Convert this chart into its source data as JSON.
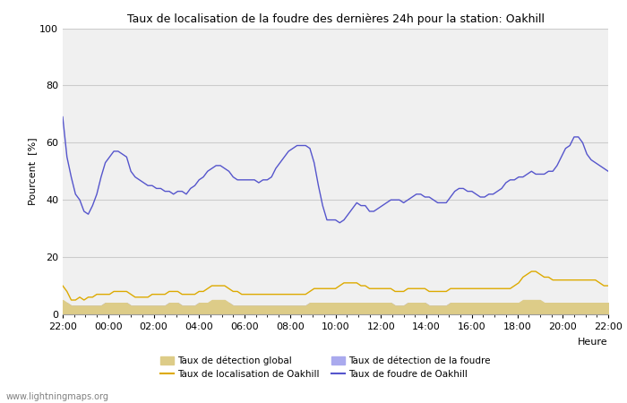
{
  "title": "Taux de localisation de la foudre des dernières 24h pour la station: Oakhill",
  "xlabel": "Heure",
  "ylabel": "Pourcent  [%]",
  "xlim": [
    0,
    24
  ],
  "ylim": [
    0,
    100
  ],
  "yticks": [
    0,
    20,
    40,
    60,
    80,
    100
  ],
  "xtick_labels": [
    "22:00",
    "00:00",
    "02:00",
    "04:00",
    "06:00",
    "08:00",
    "10:00",
    "12:00",
    "14:00",
    "16:00",
    "18:00",
    "20:00",
    "22:00"
  ],
  "xtick_positions": [
    0,
    2,
    4,
    6,
    8,
    10,
    12,
    14,
    16,
    18,
    20,
    22,
    24
  ],
  "background_color": "#ffffff",
  "plot_bg_color": "#f0f0f0",
  "grid_color": "#cccccc",
  "watermark": "www.lightningmaps.org",
  "blue_line": [
    69,
    55,
    48,
    42,
    40,
    36,
    35,
    38,
    42,
    48,
    53,
    55,
    57,
    57,
    56,
    55,
    50,
    48,
    47,
    46,
    45,
    45,
    44,
    44,
    43,
    43,
    42,
    43,
    43,
    42,
    44,
    45,
    47,
    48,
    50,
    51,
    52,
    52,
    51,
    50,
    48,
    47,
    47,
    47,
    47,
    47,
    46,
    47,
    47,
    48,
    51,
    53,
    55,
    57,
    58,
    59,
    59,
    59,
    58,
    53,
    45,
    38,
    33,
    33,
    33,
    32,
    33,
    35,
    37,
    39,
    38,
    38,
    36,
    36,
    37,
    38,
    39,
    40,
    40,
    40,
    39,
    40,
    41,
    42,
    42,
    41,
    41,
    40,
    39,
    39,
    39,
    41,
    43,
    44,
    44,
    43,
    43,
    42,
    41,
    41,
    42,
    42,
    43,
    44,
    46,
    47,
    47,
    48,
    48,
    49,
    50,
    49,
    49,
    49,
    50,
    50,
    52,
    55,
    58,
    59,
    62,
    62,
    60,
    56,
    54,
    53,
    52,
    51,
    50
  ],
  "orange_line": [
    10,
    8,
    5,
    5,
    6,
    5,
    6,
    6,
    7,
    7,
    7,
    7,
    8,
    8,
    8,
    8,
    7,
    6,
    6,
    6,
    6,
    7,
    7,
    7,
    7,
    8,
    8,
    8,
    7,
    7,
    7,
    7,
    8,
    8,
    9,
    10,
    10,
    10,
    10,
    9,
    8,
    8,
    7,
    7,
    7,
    7,
    7,
    7,
    7,
    7,
    7,
    7,
    7,
    7,
    7,
    7,
    7,
    7,
    8,
    9,
    9,
    9,
    9,
    9,
    9,
    10,
    11,
    11,
    11,
    11,
    10,
    10,
    9,
    9,
    9,
    9,
    9,
    9,
    8,
    8,
    8,
    9,
    9,
    9,
    9,
    9,
    8,
    8,
    8,
    8,
    8,
    9,
    9,
    9,
    9,
    9,
    9,
    9,
    9,
    9,
    9,
    9,
    9,
    9,
    9,
    9,
    10,
    11,
    13,
    14,
    15,
    15,
    14,
    13,
    13,
    12,
    12,
    12,
    12,
    12,
    12,
    12,
    12,
    12,
    12,
    12,
    11,
    10,
    10
  ],
  "yellow_fill": [
    5,
    4,
    3,
    3,
    3,
    3,
    3,
    3,
    3,
    3,
    4,
    4,
    4,
    4,
    4,
    4,
    3,
    3,
    3,
    3,
    3,
    3,
    3,
    3,
    3,
    4,
    4,
    4,
    3,
    3,
    3,
    3,
    4,
    4,
    4,
    5,
    5,
    5,
    5,
    4,
    3,
    3,
    3,
    3,
    3,
    3,
    3,
    3,
    3,
    3,
    3,
    3,
    3,
    3,
    3,
    3,
    3,
    3,
    4,
    4,
    4,
    4,
    4,
    4,
    4,
    4,
    4,
    4,
    4,
    4,
    4,
    4,
    4,
    4,
    4,
    4,
    4,
    4,
    3,
    3,
    3,
    4,
    4,
    4,
    4,
    4,
    3,
    3,
    3,
    3,
    3,
    4,
    4,
    4,
    4,
    4,
    4,
    4,
    4,
    4,
    4,
    4,
    4,
    4,
    4,
    4,
    4,
    4,
    5,
    5,
    5,
    5,
    5,
    4,
    4,
    4,
    4,
    4,
    4,
    4,
    4,
    4,
    4,
    4,
    4,
    4,
    4,
    4,
    4
  ],
  "blue_fill": [
    4,
    4,
    3,
    3,
    3,
    3,
    3,
    3,
    3,
    3,
    4,
    4,
    4,
    4,
    4,
    4,
    3,
    3,
    3,
    3,
    3,
    3,
    3,
    3,
    3,
    4,
    4,
    4,
    3,
    3,
    3,
    3,
    4,
    4,
    4,
    4,
    4,
    4,
    4,
    4,
    3,
    3,
    3,
    3,
    3,
    3,
    3,
    3,
    3,
    3,
    3,
    3,
    3,
    3,
    3,
    3,
    3,
    3,
    4,
    4,
    4,
    4,
    4,
    4,
    4,
    4,
    4,
    4,
    4,
    4,
    4,
    4,
    4,
    4,
    4,
    4,
    4,
    4,
    3,
    3,
    3,
    4,
    4,
    4,
    4,
    4,
    3,
    3,
    3,
    3,
    3,
    4,
    4,
    4,
    4,
    4,
    4,
    4,
    4,
    4,
    4,
    4,
    4,
    4,
    4,
    4,
    4,
    4,
    4,
    4,
    4,
    4,
    4,
    4,
    4,
    4,
    4,
    4,
    4,
    4,
    4,
    4,
    4,
    4,
    4,
    4,
    4,
    4,
    4
  ],
  "blue_line_color": "#5555cc",
  "orange_line_color": "#ddaa00",
  "yellow_fill_color": "#ddcc88",
  "blue_fill_color": "#aaaaee",
  "legend_items": [
    {
      "label": "Taux de détection global",
      "type": "fill",
      "color": "#ddcc88"
    },
    {
      "label": "Taux de localisation de Oakhill",
      "type": "line",
      "color": "#ddaa00"
    },
    {
      "label": "Taux de détection de la foudre",
      "type": "fill",
      "color": "#aaaaee"
    },
    {
      "label": "Taux de foudre de Oakhill",
      "type": "line",
      "color": "#5555cc"
    }
  ]
}
